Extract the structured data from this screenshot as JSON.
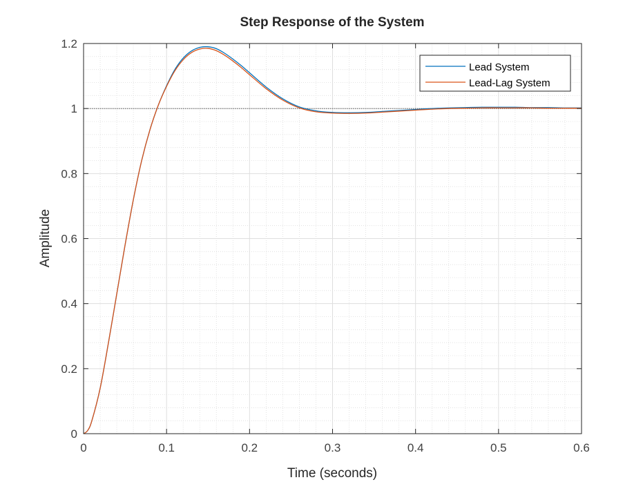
{
  "chart_data": {
    "type": "line",
    "title": "Step Response of the System",
    "xlabel": "Time (seconds)",
    "ylabel": "Amplitude",
    "xlim": [
      0,
      0.6
    ],
    "ylim": [
      0,
      1.2
    ],
    "xticks": [
      "0",
      "0.1",
      "0.2",
      "0.3",
      "0.4",
      "0.5",
      "0.6"
    ],
    "yticks": [
      "0",
      "0.2",
      "0.4",
      "0.6",
      "0.8",
      "1",
      "1.2"
    ],
    "grid": "on (major and minor)",
    "reference_line": 1,
    "legend_position": "top-right",
    "series": [
      {
        "name": "Lead System",
        "color": "#0072BD",
        "x": [
          0,
          0.005,
          0.01,
          0.02,
          0.03,
          0.04,
          0.05,
          0.06,
          0.07,
          0.08,
          0.09,
          0.1,
          0.11,
          0.12,
          0.13,
          0.14,
          0.15,
          0.16,
          0.17,
          0.18,
          0.19,
          0.2,
          0.22,
          0.24,
          0.26,
          0.28,
          0.3,
          0.32,
          0.34,
          0.36,
          0.38,
          0.4,
          0.42,
          0.44,
          0.46,
          0.48,
          0.5,
          0.52,
          0.54,
          0.56,
          0.58,
          0.6
        ],
        "y": [
          0,
          0.01,
          0.04,
          0.14,
          0.28,
          0.43,
          0.58,
          0.72,
          0.84,
          0.935,
          1.01,
          1.07,
          1.12,
          1.155,
          1.177,
          1.188,
          1.19,
          1.184,
          1.17,
          1.152,
          1.132,
          1.11,
          1.066,
          1.03,
          1.005,
          0.993,
          0.988,
          0.987,
          0.988,
          0.991,
          0.994,
          0.997,
          1.0,
          1.002,
          1.003,
          1.004,
          1.004,
          1.004,
          1.003,
          1.003,
          1.002,
          1.002
        ]
      },
      {
        "name": "Lead-Lag System",
        "color": "#D95319",
        "x": [
          0,
          0.005,
          0.01,
          0.02,
          0.03,
          0.04,
          0.05,
          0.06,
          0.07,
          0.08,
          0.09,
          0.1,
          0.11,
          0.12,
          0.13,
          0.14,
          0.15,
          0.16,
          0.17,
          0.18,
          0.19,
          0.2,
          0.22,
          0.24,
          0.26,
          0.28,
          0.3,
          0.32,
          0.34,
          0.36,
          0.38,
          0.4,
          0.42,
          0.44,
          0.46,
          0.48,
          0.5,
          0.52,
          0.54,
          0.56,
          0.58,
          0.6
        ],
        "y": [
          0,
          0.01,
          0.04,
          0.14,
          0.28,
          0.43,
          0.58,
          0.72,
          0.84,
          0.935,
          1.01,
          1.068,
          1.116,
          1.15,
          1.172,
          1.183,
          1.185,
          1.178,
          1.164,
          1.146,
          1.126,
          1.104,
          1.061,
          1.026,
          1.002,
          0.99,
          0.986,
          0.985,
          0.986,
          0.989,
          0.992,
          0.995,
          0.998,
          1.0,
          1.001,
          1.002,
          1.002,
          1.002,
          1.002,
          1.001,
          1.001,
          1.001
        ]
      }
    ]
  }
}
